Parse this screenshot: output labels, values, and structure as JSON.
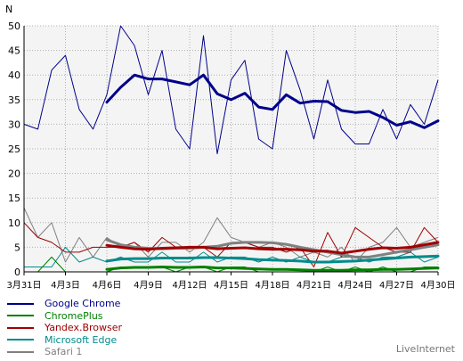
{
  "chart_data": {
    "type": "line",
    "ylabel": "N",
    "ylim": [
      0,
      50
    ],
    "yticks": [
      0,
      5,
      10,
      15,
      20,
      25,
      30,
      35,
      40,
      45,
      50
    ],
    "x_count": 31,
    "xtick_labels": [
      {
        "i": 0,
        "label": "3月31日"
      },
      {
        "i": 3,
        "label": "4月3日"
      },
      {
        "i": 6,
        "label": "4月6日"
      },
      {
        "i": 9,
        "label": "4月9日"
      },
      {
        "i": 12,
        "label": "4月12日"
      },
      {
        "i": 15,
        "label": "4月15日"
      },
      {
        "i": 18,
        "label": "4月18日"
      },
      {
        "i": 21,
        "label": "4月21日"
      },
      {
        "i": 24,
        "label": "4月24日"
      },
      {
        "i": 27,
        "label": "4月27日"
      },
      {
        "i": 30,
        "label": "4月30日"
      }
    ],
    "grid": true,
    "legend_position": "bottom-left",
    "series": [
      {
        "name": "Google Chrome",
        "color": "#00008b",
        "values": [
          30,
          29,
          41,
          44,
          33,
          29,
          36,
          50,
          46,
          36,
          45,
          29,
          25,
          48,
          24,
          39,
          43,
          27,
          25,
          45,
          37,
          27,
          39,
          29,
          26,
          26,
          33,
          27,
          34,
          30,
          39
        ],
        "trend": [
          null,
          null,
          null,
          null,
          null,
          null,
          34.5,
          37.5,
          40,
          39.2,
          39.2,
          38.6,
          38,
          40,
          36.2,
          35,
          36.3,
          33.5,
          33,
          36,
          34.3,
          34.7,
          34.6,
          32.8,
          32.4,
          32.6,
          31.4,
          29.8,
          30.5,
          29.3,
          30.7
        ]
      },
      {
        "name": "ChromePlus",
        "color": "#008000",
        "values": [
          0,
          0,
          3,
          0,
          0,
          0,
          0,
          1,
          1,
          1,
          1,
          0,
          1,
          1,
          0,
          1,
          1,
          0,
          0,
          0,
          0,
          0,
          1,
          0,
          1,
          0,
          1,
          0,
          0,
          1,
          1
        ],
        "trend": [
          null,
          null,
          null,
          null,
          null,
          null,
          0.5,
          0.8,
          0.9,
          0.9,
          1,
          0.9,
          0.9,
          1,
          0.8,
          0.8,
          0.7,
          0.6,
          0.5,
          0.5,
          0.4,
          0.3,
          0.3,
          0.3,
          0.4,
          0.4,
          0.5,
          0.5,
          0.6,
          0.7,
          0.8
        ]
      },
      {
        "name": "Yandex.Browser",
        "color": "#a00000",
        "values": [
          10,
          7,
          6,
          4,
          4,
          5,
          5,
          5,
          6,
          4,
          7,
          5,
          5,
          5,
          3,
          6,
          6,
          5,
          5,
          4,
          5,
          1,
          8,
          3,
          9,
          7,
          5,
          4,
          4,
          9,
          6
        ],
        "trend": [
          null,
          null,
          null,
          null,
          null,
          null,
          5.4,
          5,
          4.7,
          4.6,
          4.8,
          4.9,
          5,
          5,
          4.7,
          4.8,
          4.9,
          4.7,
          4.6,
          4.6,
          4.5,
          4.2,
          4.2,
          3.8,
          4.2,
          4.6,
          4.9,
          4.8,
          5,
          5.5,
          6
        ]
      },
      {
        "name": "Microsoft Edge",
        "color": "#008b8b",
        "values": [
          1,
          1,
          1,
          5,
          2,
          3,
          2,
          3,
          2,
          2,
          4,
          2,
          2,
          4,
          2,
          3,
          3,
          2,
          3,
          2,
          3,
          2,
          2,
          3,
          3,
          2,
          3,
          3,
          4,
          2,
          3
        ],
        "trend": [
          null,
          null,
          null,
          null,
          null,
          null,
          2.2,
          2.6,
          2.7,
          2.7,
          2.8,
          2.8,
          2.8,
          2.9,
          2.9,
          2.8,
          2.7,
          2.5,
          2.4,
          2.3,
          2.2,
          2,
          2,
          2.1,
          2.2,
          2.4,
          2.6,
          2.8,
          3,
          3.1,
          3.2
        ]
      },
      {
        "name": "Safari 1",
        "color": "#808080",
        "values": [
          13,
          7,
          10,
          2,
          7,
          3,
          7,
          5,
          6,
          3,
          6,
          6,
          4,
          6,
          11,
          7,
          6,
          5,
          6,
          5,
          3,
          4,
          3,
          5,
          2,
          5,
          6,
          9,
          5,
          6,
          7
        ],
        "trend": [
          null,
          null,
          null,
          null,
          null,
          null,
          6.5,
          5.5,
          5,
          4.8,
          4.7,
          4.8,
          4.8,
          5,
          5.2,
          5.8,
          6,
          6,
          5.9,
          5.6,
          5,
          4.5,
          4,
          3.5,
          3,
          3,
          3.5,
          4,
          4.5,
          5,
          5.5
        ]
      }
    ]
  },
  "brand": "LiveInternet"
}
